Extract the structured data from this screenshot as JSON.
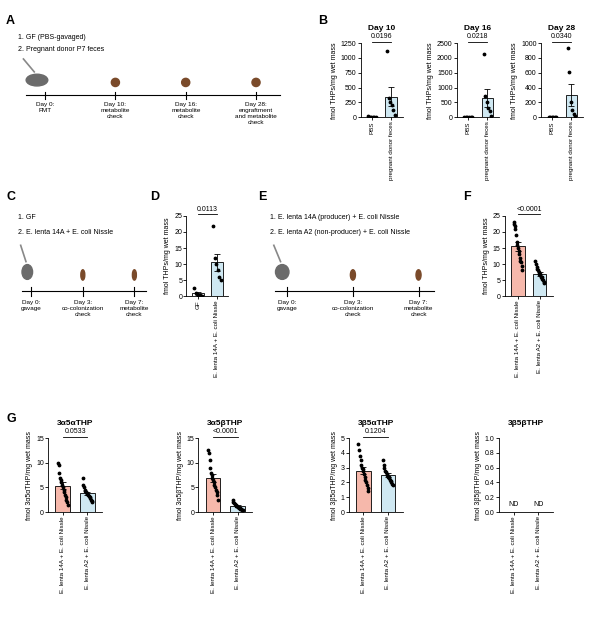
{
  "diagrams": [
    {
      "panel": "A",
      "groups": [
        "1. GF (PBS-gavaged)",
        "2. Pregnant donor P7 feces"
      ],
      "timeline": [
        "Day 0:\nFMT",
        "Day 10:\nmetabolite\ncheck",
        "Day 16:\nmetabolite\ncheck",
        "Day 28:\nengraftment\nand metabolite\ncheck"
      ]
    },
    {
      "panel": "C",
      "groups": [
        "1. GF",
        "2. E. lenta 14A + E. coli Nissle"
      ],
      "timeline": [
        "Day 0:\ngavage",
        "Day 3:\nco-colonization\ncheck",
        "Day 7:\nmetabolite\ncheck"
      ]
    },
    {
      "panel": "E",
      "groups": [
        "1. E. lenta 14A (producer) + E. coli Nissle",
        "2. E. lenta A2 (non-producer) + E. coli Nissle"
      ],
      "timeline": [
        "Day 0:\ngavage",
        "Day 3:\nco-colonization\ncheck",
        "Day 7:\nmetabolite\ncheck"
      ]
    }
  ],
  "chart_data": [
    {
      "panel": "B",
      "type": "bar",
      "title": "Day 10",
      "ylabel": "fmol THPs/mg wet mass",
      "categories": [
        "PBS",
        "pregnant donor feces"
      ],
      "values": [
        6,
        343
      ],
      "errors": [
        3,
        160
      ],
      "points": [
        [
          20,
          10,
          5,
          0,
          0,
          0
        ],
        [
          1120,
          330,
          250,
          200,
          130,
          30
        ]
      ],
      "colors": [
        "#ffffff",
        "#cfe8f2"
      ],
      "annotation": "0.0196",
      "ylim": [
        0,
        1250
      ],
      "yticks": [
        0,
        250,
        500,
        750,
        1000,
        1250
      ]
    },
    {
      "type": "bar",
      "title": "Day 16",
      "ylabel": "fmol THPs/mg wet mass",
      "categories": [
        "PBS",
        "pregnant donor feces"
      ],
      "values": [
        2.5,
        650
      ],
      "errors": [
        1.7,
        300
      ],
      "points": [
        [
          10,
          5,
          0,
          0,
          0,
          0
        ],
        [
          2150,
          700,
          500,
          300,
          200,
          50
        ]
      ],
      "colors": [
        "#ffffff",
        "#cfe8f2"
      ],
      "annotation": "0.0218",
      "ylim": [
        0,
        2500
      ],
      "yticks": [
        0,
        500,
        1000,
        1500,
        2000,
        2500
      ]
    },
    {
      "type": "bar",
      "title": "Day 28",
      "ylabel": "fmol THPs/mg wet mass",
      "categories": [
        "PBS",
        "pregnant donor feces"
      ],
      "values": [
        0.8,
        300
      ],
      "errors": [
        0.8,
        145
      ],
      "points": [
        [
          5,
          0,
          0,
          0,
          0,
          0
        ],
        [
          940,
          610,
          210,
          100,
          40,
          20
        ]
      ],
      "colors": [
        "#ffffff",
        "#cfe8f2"
      ],
      "annotation": "0.0340",
      "ylim": [
        0,
        1000
      ],
      "yticks": [
        0,
        200,
        400,
        600,
        800,
        1000
      ]
    },
    {
      "panel": "D",
      "type": "bar",
      "ylabel": "fmol THPs/mg wet mass",
      "categories": [
        "GF",
        "E. lenta 14A + E. coli Nissle"
      ],
      "values": [
        0.9,
        10.5
      ],
      "errors": [
        0.4,
        2.6
      ],
      "points": [
        [
          2.5,
          1,
          0.5,
          0.3,
          0.2
        ],
        [
          22,
          12,
          10,
          8,
          6,
          5
        ]
      ],
      "colors": [
        "#ffffff",
        "#cfe8f2"
      ],
      "annotation": "0.0113",
      "ylim": [
        0,
        25
      ],
      "yticks": [
        0,
        5,
        10,
        15,
        20,
        25
      ]
    },
    {
      "panel": "F",
      "type": "bar",
      "ylabel": "fmol THPs/mg wet mass",
      "categories": [
        "E. lenta 14A + E. coli Nissle",
        "E. lenta A2 + E. coli Nissle"
      ],
      "values": [
        15.5,
        7.0
      ],
      "errors": [
        1.4,
        0.6
      ],
      "points": [
        [
          23,
          22.5,
          22,
          21,
          19,
          17,
          16,
          15,
          14,
          13,
          12,
          11,
          10.5,
          9.5,
          8
        ],
        [
          11,
          10,
          9,
          8.5,
          8,
          7.5,
          7,
          7,
          6.5,
          6,
          6,
          5.5,
          5,
          4.5,
          4
        ]
      ],
      "colors": [
        "#f6b8ab",
        "#cfe8f2"
      ],
      "annotation": "<0.0001",
      "ylim": [
        0,
        25
      ],
      "yticks": [
        0,
        5,
        10,
        15,
        20,
        25
      ]
    },
    {
      "panel": "G",
      "type": "bar",
      "title": "3α5αTHP",
      "ylabel": "fmol 3α5αTHP/mg wet mass",
      "categories": [
        "E. lenta 14A + E. coli Nissle",
        "E. lenta A2 + E. coli Nissle"
      ],
      "values": [
        5.3,
        3.8
      ],
      "errors": [
        0.7,
        0.35
      ],
      "points": [
        [
          10,
          9.5,
          8,
          7,
          6.5,
          6,
          5.5,
          5,
          4.5,
          4,
          3.5,
          3,
          2.5,
          2,
          1.5
        ],
        [
          7,
          5.5,
          5,
          4.5,
          4.2,
          4,
          3.8,
          3.6,
          3.4,
          3.2,
          3,
          2.8,
          2.5,
          2.2,
          2
        ]
      ],
      "colors": [
        "#f6b8ab",
        "#cfe8f2"
      ],
      "annotation": "0.0533",
      "ylim": [
        0,
        15
      ],
      "yticks": [
        0,
        5,
        10,
        15
      ]
    },
    {
      "type": "bar",
      "title": "3α5βTHP",
      "ylabel": "fmol 3α5βTHP/mg wet mass",
      "categories": [
        "E. lenta 14A + E. coli Nissle",
        "E. lenta A2 + E. coli Nissle"
      ],
      "values": [
        7.0,
        1.2
      ],
      "errors": [
        0.8,
        0.15
      ],
      "points": [
        [
          12.5,
          12,
          10.5,
          9,
          8,
          7.5,
          7,
          6.5,
          6,
          5.5,
          5,
          4.5,
          4,
          3.5,
          2.5
        ],
        [
          2.5,
          2,
          1.8,
          1.6,
          1.4,
          1.3,
          1.2,
          1.1,
          1,
          0.9,
          0.8,
          0.7,
          0.6,
          0.5,
          0.4
        ]
      ],
      "colors": [
        "#f6b8ab",
        "#cfe8f2"
      ],
      "annotation": "<0.0001",
      "ylim": [
        0,
        15
      ],
      "yticks": [
        0,
        5,
        10,
        15
      ]
    },
    {
      "type": "bar",
      "title": "3β5αTHP",
      "ylabel": "fmol 3β5αTHP/mg wet mass",
      "categories": [
        "E. lenta 14A + E. coli Nissle",
        "E. lenta A2 + E. coli Nissle"
      ],
      "values": [
        2.8,
        2.5
      ],
      "errors": [
        0.25,
        0.12
      ],
      "points": [
        [
          4.6,
          4.2,
          3.8,
          3.5,
          3.2,
          3,
          2.9,
          2.8,
          2.6,
          2.4,
          2.2,
          2,
          1.8,
          1.6,
          1.4
        ],
        [
          3.5,
          3.2,
          3,
          2.8,
          2.7,
          2.6,
          2.5,
          2.4,
          2.4,
          2.3,
          2.2,
          2.1,
          2,
          1.9,
          1.8
        ]
      ],
      "colors": [
        "#f6b8ab",
        "#cfe8f2"
      ],
      "annotation": "0.1204",
      "ylim": [
        0,
        5
      ],
      "yticks": [
        0,
        1,
        2,
        3,
        4,
        5
      ]
    },
    {
      "type": "bar",
      "title": "3β5βTHP",
      "ylabel": "fmol 3β5βTHP/mg wet mass",
      "categories": [
        "E. lenta 14A + E. coli Nissle",
        "E. lenta A2 + E. coli Nissle"
      ],
      "values": [
        null,
        null
      ],
      "value_labels": [
        "ND",
        "ND"
      ],
      "colors": [
        "#f6b8ab",
        "#cfe8f2"
      ],
      "ylim": [
        0,
        1
      ],
      "yticks": [
        {
          "value": 0,
          "label": "0.0"
        },
        0.2,
        0.4,
        0.6,
        0.8,
        {
          "value": 1,
          "label": "1.0"
        }
      ]
    }
  ]
}
